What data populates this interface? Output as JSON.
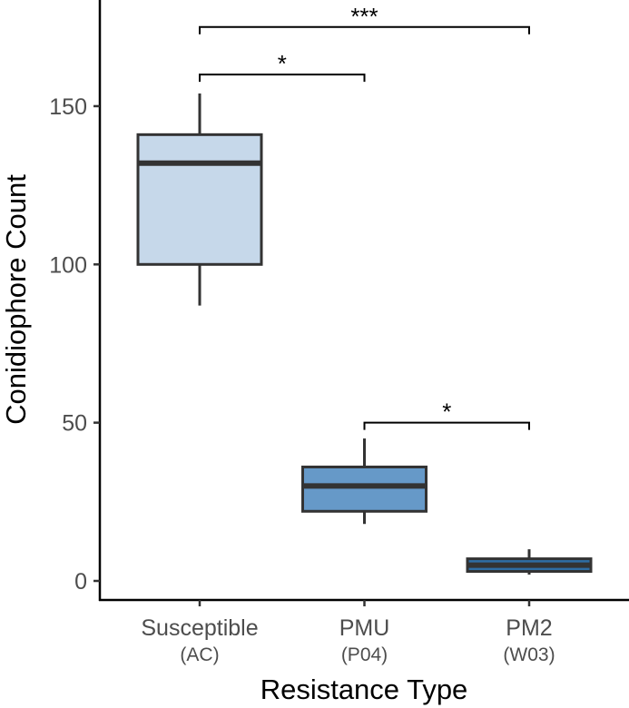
{
  "chart_data": {
    "type": "box",
    "title": "",
    "xlabel": "Resistance Type",
    "ylabel": "Conidiophore Count",
    "ylim": [
      -4,
      184
    ],
    "yticks": [
      0,
      50,
      100,
      150
    ],
    "grid": false,
    "categories": [
      {
        "label": "Susceptible",
        "sublabel": "(AC)",
        "color": "#c6d8ea",
        "min": 87,
        "q1": 100,
        "median": 132,
        "q3": 141,
        "max": 154
      },
      {
        "label": "PMU",
        "sublabel": "(P04)",
        "color": "#6699c8",
        "min": 18,
        "q1": 22,
        "median": 30,
        "q3": 36,
        "max": 45
      },
      {
        "label": "PM2",
        "sublabel": "(W03)",
        "color": "#2e6da4",
        "min": 2,
        "q1": 3,
        "median": 5,
        "q3": 7,
        "max": 10
      }
    ],
    "annotations": [
      {
        "from": 0,
        "to": 2,
        "y": 175,
        "label": "***"
      },
      {
        "from": 0,
        "to": 1,
        "y": 160,
        "label": "*"
      },
      {
        "from": 1,
        "to": 2,
        "y": 50,
        "label": "*"
      }
    ]
  }
}
